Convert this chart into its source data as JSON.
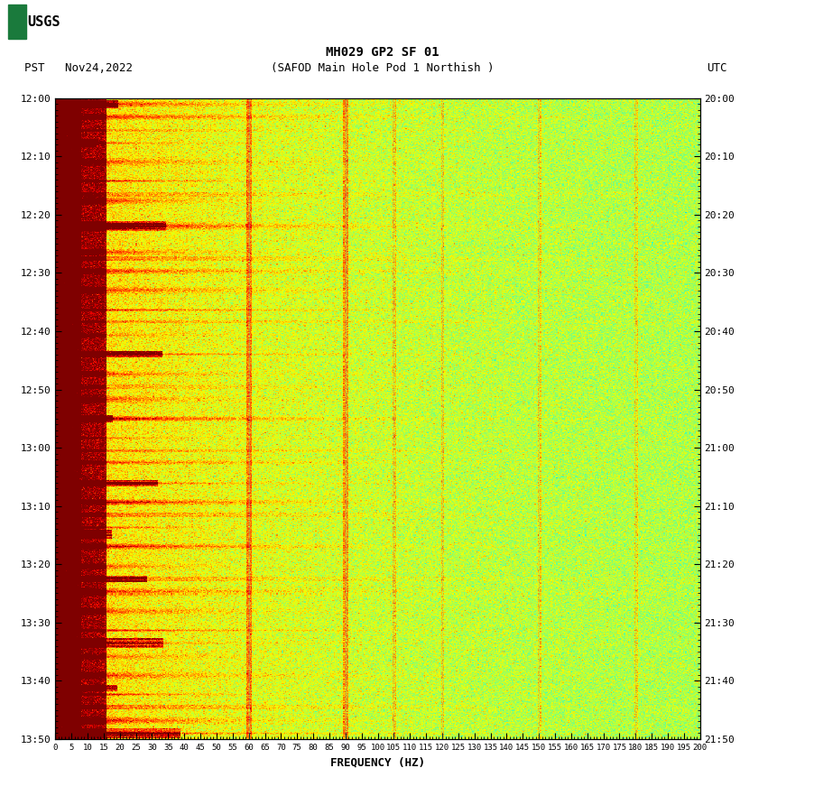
{
  "title_line1": "MH029 GP2 SF 01",
  "title_line2": "(SAFOD Main Hole Pod 1 Northish )",
  "date_label": "PST   Nov24,2022",
  "utc_label": "UTC",
  "xlabel": "FREQUENCY (HZ)",
  "freq_min": 0,
  "freq_max": 200,
  "left_yticks_labels": [
    "12:00",
    "12:10",
    "12:20",
    "12:30",
    "12:40",
    "12:50",
    "13:00",
    "13:10",
    "13:20",
    "13:30",
    "13:40",
    "13:50"
  ],
  "right_yticks_labels": [
    "20:00",
    "20:10",
    "20:20",
    "20:30",
    "20:40",
    "20:50",
    "21:00",
    "21:10",
    "21:20",
    "21:30",
    "21:40",
    "21:50"
  ],
  "background_color": "#ffffff",
  "colormap": "jet",
  "n_time": 700,
  "n_freq": 600,
  "seed": 42,
  "usgs_color": "#1a7a3c",
  "title_fontsize": 10,
  "axis_fontsize": 9,
  "tick_fontsize": 8
}
